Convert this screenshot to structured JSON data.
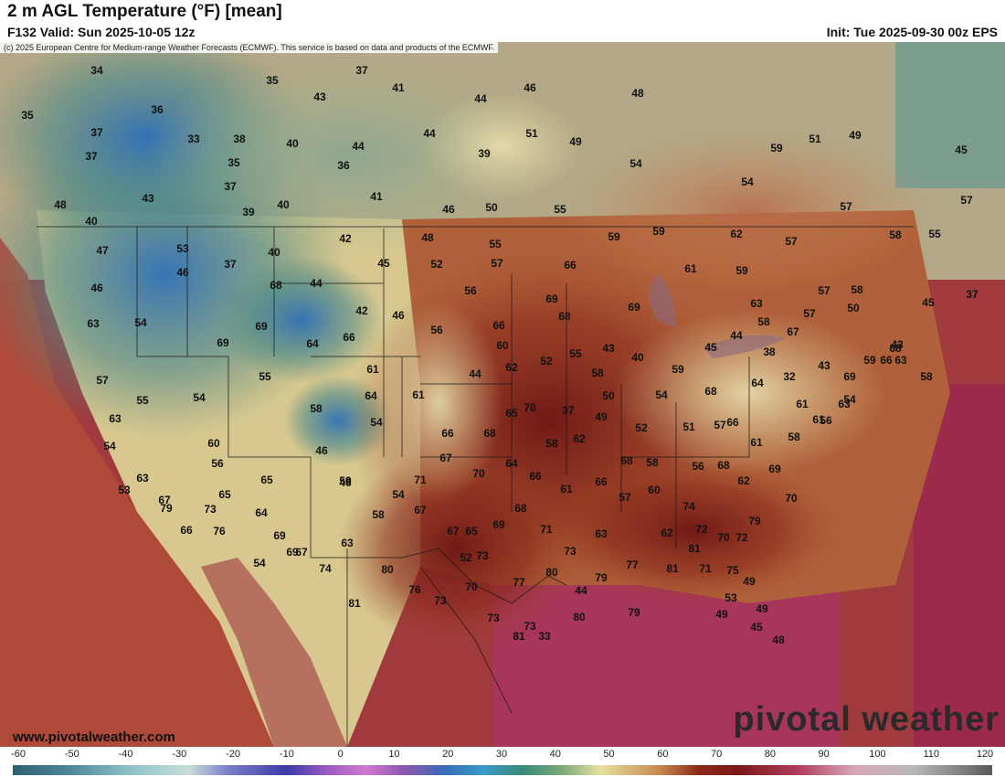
{
  "header": {
    "title": "2 m AGL Temperature (°F) [mean]",
    "valid": "F132 Valid: Sun 2025-10-05 12z",
    "init": "Init: Tue 2025-09-30 00z EPS"
  },
  "map": {
    "copyright": "(c) 2025 European Centre for Medium-range Weather Forecasts (ECMWF). This service is based on data and products of the ECMWF.",
    "website": "www.pivotalweather.com",
    "brand": "pivotal weather",
    "temperature_labels": [
      "34",
      "37",
      "35",
      "41",
      "44",
      "46",
      "48",
      "43",
      "44",
      "35",
      "36",
      "33",
      "38",
      "37",
      "40",
      "44",
      "51",
      "49",
      "51",
      "49",
      "45",
      "37",
      "35",
      "36",
      "39",
      "54",
      "54",
      "59",
      "57",
      "37",
      "41",
      "46",
      "50",
      "55",
      "59",
      "62",
      "57",
      "58",
      "55",
      "48",
      "43",
      "39",
      "40",
      "40",
      "42",
      "45",
      "52",
      "57",
      "55",
      "66",
      "61",
      "59",
      "57",
      "59",
      "56",
      "58",
      "57",
      "47",
      "46",
      "37",
      "40",
      "44",
      "42",
      "48",
      "46",
      "56",
      "66",
      "69",
      "68",
      "69",
      "63",
      "58",
      "57",
      "50",
      "45",
      "37",
      "46",
      "53",
      "68",
      "69",
      "66",
      "64",
      "61",
      "60",
      "62",
      "52",
      "55",
      "58",
      "43",
      "40",
      "45",
      "44",
      "38",
      "32",
      "43",
      "69",
      "59",
      "68",
      "67",
      "69",
      "63",
      "54",
      "54",
      "55",
      "58",
      "64",
      "61",
      "44",
      "37",
      "49",
      "50",
      "54",
      "59",
      "68",
      "66",
      "64",
      "61",
      "56",
      "54",
      "58",
      "63",
      "57",
      "55",
      "60",
      "56",
      "46",
      "46",
      "54",
      "66",
      "68",
      "65",
      "70",
      "58",
      "62",
      "52",
      "51",
      "57",
      "61",
      "58",
      "61",
      "43",
      "63",
      "66",
      "63",
      "54",
      "63",
      "53",
      "65",
      "59",
      "54",
      "71",
      "67",
      "70",
      "64",
      "66",
      "61",
      "66",
      "68",
      "58",
      "56",
      "68",
      "62",
      "69",
      "70",
      "67",
      "65",
      "64",
      "69",
      "67",
      "63",
      "58",
      "67",
      "67",
      "65",
      "69",
      "68",
      "71",
      "73",
      "63",
      "57",
      "60",
      "62",
      "74",
      "72",
      "70",
      "72",
      "79",
      "81",
      "73",
      "79",
      "66",
      "76",
      "54",
      "69",
      "74",
      "81",
      "80",
      "76",
      "73",
      "70",
      "73",
      "77",
      "80",
      "79",
      "77",
      "81",
      "71",
      "75",
      "49",
      "49",
      "53",
      "73",
      "80",
      "79",
      "52",
      "73",
      "81",
      "33",
      "44",
      "49",
      "45",
      "48"
    ]
  },
  "colorbar": {
    "ticks": [
      "-60",
      "-50",
      "-40",
      "-30",
      "-20",
      "-10",
      "0",
      "10",
      "20",
      "30",
      "40",
      "50",
      "60",
      "70",
      "80",
      "90",
      "100",
      "110",
      "120"
    ]
  }
}
